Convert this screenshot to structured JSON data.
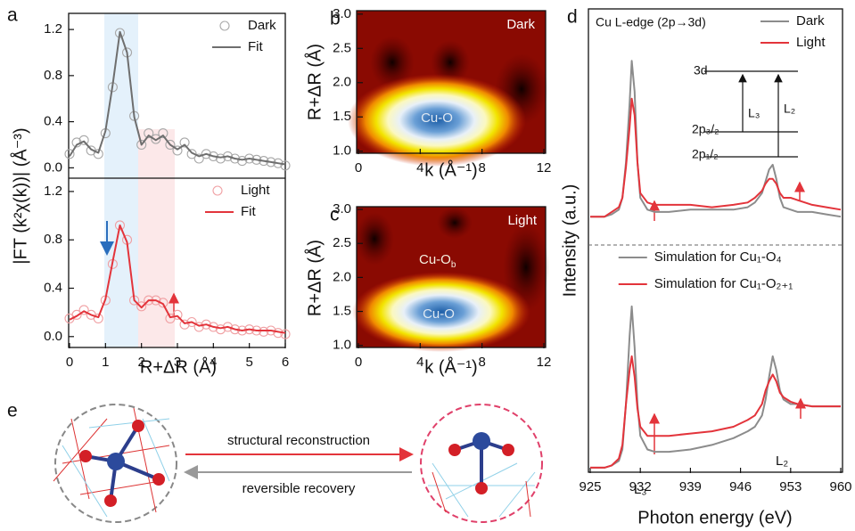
{
  "chart_data": [
    {
      "type": "line",
      "panel_label": "a",
      "ylabel": "|FT (k²χ(k))| (Å⁻³)",
      "x": [
        0,
        0.2,
        0.4,
        0.6,
        0.8,
        1.0,
        1.2,
        1.4,
        1.6,
        1.8,
        2.0,
        2.2,
        2.4,
        2.6,
        2.8,
        3.0,
        3.2,
        3.4,
        3.6,
        3.8,
        4.0,
        4.2,
        4.4,
        4.6,
        4.8,
        5.0,
        5.2,
        5.4,
        5.6,
        5.8,
        6.0
      ],
      "xlim": [
        0,
        6
      ],
      "ylim": [
        -0.09,
        1.34
      ],
      "yticks": [
        {
          "value": 0,
          "label": "0.0"
        },
        0.4,
        0.8,
        1.2
      ],
      "legend": "upper right",
      "series": [
        {
          "name": "Dark",
          "color": "#a8a8a8",
          "style": "markers",
          "values": [
            0.12,
            0.22,
            0.24,
            0.15,
            0.12,
            0.3,
            0.7,
            1.17,
            1.0,
            0.45,
            0.2,
            0.3,
            0.25,
            0.3,
            0.2,
            0.15,
            0.22,
            0.12,
            0.08,
            0.12,
            0.1,
            0.08,
            0.1,
            0.08,
            0.06,
            0.08,
            0.07,
            0.06,
            0.05,
            0.04,
            0.02
          ]
        },
        {
          "name": "Fit",
          "color": "#6e6e6e",
          "style": "line",
          "values": [
            0.1,
            0.2,
            0.23,
            0.16,
            0.13,
            0.32,
            0.72,
            1.18,
            1.0,
            0.44,
            0.2,
            0.28,
            0.24,
            0.28,
            0.2,
            0.16,
            0.2,
            0.13,
            0.1,
            0.12,
            0.1,
            0.09,
            0.1,
            0.08,
            0.07,
            0.08,
            0.07,
            0.06,
            0.05,
            0.04,
            0.03
          ]
        }
      ]
    },
    {
      "type": "line",
      "xlabel": "R+ΔR (Å)",
      "x": [
        0,
        0.2,
        0.4,
        0.6,
        0.8,
        1.0,
        1.2,
        1.4,
        1.6,
        1.8,
        2.0,
        2.2,
        2.4,
        2.6,
        2.8,
        3.0,
        3.2,
        3.4,
        3.6,
        3.8,
        4.0,
        4.2,
        4.4,
        4.6,
        4.8,
        5.0,
        5.2,
        5.4,
        5.6,
        5.8,
        6.0
      ],
      "xlim": [
        0,
        6
      ],
      "ylim": [
        -0.09,
        1.31
      ],
      "xticks": [
        0,
        1,
        2,
        3,
        4,
        5,
        6
      ],
      "yticks": [
        {
          "value": 0,
          "label": "0.0"
        },
        0.4,
        0.8,
        1.2
      ],
      "legend": "upper right",
      "series": [
        {
          "name": "Light",
          "color": "#f0a0a3",
          "style": "markers",
          "values": [
            0.15,
            0.18,
            0.22,
            0.18,
            0.15,
            0.3,
            0.6,
            0.92,
            0.8,
            0.3,
            0.25,
            0.3,
            0.3,
            0.28,
            0.15,
            0.18,
            0.1,
            0.12,
            0.08,
            0.1,
            0.08,
            0.06,
            0.08,
            0.06,
            0.05,
            0.06,
            0.05,
            0.04,
            0.05,
            0.03,
            0.02
          ]
        },
        {
          "name": "Fit",
          "color": "#e3343b",
          "style": "line",
          "values": [
            0.14,
            0.17,
            0.21,
            0.18,
            0.16,
            0.31,
            0.62,
            0.92,
            0.78,
            0.3,
            0.24,
            0.3,
            0.3,
            0.27,
            0.16,
            0.17,
            0.11,
            0.12,
            0.09,
            0.1,
            0.08,
            0.07,
            0.08,
            0.06,
            0.05,
            0.06,
            0.05,
            0.05,
            0.05,
            0.04,
            0.03
          ]
        }
      ]
    },
    {
      "type": "contour",
      "panel_label": "b",
      "xlabel": "k (Å⁻¹)",
      "ylabel": "R+ΔR (Å)",
      "xlim": [
        0,
        12
      ],
      "ylim": [
        0.97,
        3.05
      ],
      "xticks": [
        0,
        4,
        8,
        12
      ],
      "yticks": [
        {
          "value": 1,
          "label": "1.0"
        },
        1.5,
        {
          "value": 2,
          "label": "2.0"
        },
        2.5,
        {
          "value": 3,
          "label": "3.0"
        }
      ],
      "annotations": [
        {
          "text": "Dark"
        },
        {
          "text": "Cu-O"
        }
      ]
    },
    {
      "type": "contour",
      "panel_label": "c",
      "xlabel": "k (Å⁻¹)",
      "ylabel": "R+ΔR (Å)",
      "xlim": [
        0,
        12
      ],
      "ylim": [
        0.97,
        3.04
      ],
      "xticks": [
        0,
        4,
        8,
        12
      ],
      "yticks": [
        {
          "value": 1,
          "label": "1.0"
        },
        1.5,
        {
          "value": 2,
          "label": "2.0"
        },
        2.5,
        {
          "value": 3,
          "label": "3.0"
        }
      ],
      "annotations": [
        {
          "text": "Light"
        },
        {
          "text": "Cu-O"
        },
        {
          "text": "Cu-O",
          "sub": "b"
        }
      ]
    },
    {
      "type": "line",
      "panel_label": "d",
      "title": "Cu L-edge (2p→3d)",
      "ylabel": "Intensity (a.u.)",
      "x": [
        925,
        927,
        928,
        929,
        929.5,
        930,
        930.5,
        930.8,
        931.2,
        931.6,
        932,
        933,
        934,
        936,
        939,
        942,
        945,
        947,
        948,
        949,
        949.5,
        950,
        950.5,
        951,
        951.5,
        952,
        953,
        954,
        956,
        958,
        960
      ],
      "xlim": [
        925,
        960
      ],
      "ylim": [
        0,
        1
      ],
      "legend": "upper right",
      "annotations": [
        {
          "text": "3d"
        },
        {
          "text": "2p₃/₂"
        },
        {
          "text": "2p₁/₂"
        },
        {
          "text": "L₃"
        },
        {
          "text": "L₂"
        }
      ],
      "series": [
        {
          "name": "Dark",
          "color": "#8c8c8c",
          "style": "line",
          "values": [
            0.12,
            0.12,
            0.13,
            0.15,
            0.2,
            0.35,
            0.6,
            0.78,
            0.65,
            0.35,
            0.2,
            0.15,
            0.14,
            0.14,
            0.15,
            0.15,
            0.15,
            0.16,
            0.18,
            0.22,
            0.27,
            0.32,
            0.34,
            0.28,
            0.2,
            0.16,
            0.15,
            0.14,
            0.14,
            0.13,
            0.12
          ]
        },
        {
          "name": "Light",
          "color": "#e3343b",
          "style": "line",
          "values": [
            0.12,
            0.12,
            0.14,
            0.16,
            0.2,
            0.33,
            0.5,
            0.62,
            0.55,
            0.35,
            0.22,
            0.18,
            0.17,
            0.17,
            0.17,
            0.16,
            0.17,
            0.18,
            0.2,
            0.23,
            0.26,
            0.28,
            0.28,
            0.26,
            0.22,
            0.2,
            0.2,
            0.19,
            0.17,
            0.16,
            0.15
          ]
        }
      ]
    },
    {
      "type": "line",
      "xlabel": "Photon energy (eV)",
      "x": [
        925,
        927,
        928,
        929,
        929.5,
        930,
        930.5,
        930.8,
        931.2,
        931.6,
        932,
        933,
        934,
        936,
        939,
        942,
        945,
        947,
        948,
        949,
        949.5,
        950,
        950.5,
        951,
        951.5,
        952,
        953,
        954,
        956,
        958,
        960
      ],
      "xlim": [
        925,
        960
      ],
      "ylim": [
        0,
        1
      ],
      "xticks": [
        925,
        932,
        939,
        946,
        953,
        960
      ],
      "legend": "upper center",
      "annotations": [
        {
          "text": "L₃"
        },
        {
          "text": "L₂"
        }
      ],
      "series": [
        {
          "name": "Simulation for Cu₁-O₄",
          "color": "#8c8c8c",
          "style": "line",
          "values": [
            0.02,
            0.02,
            0.03,
            0.05,
            0.1,
            0.3,
            0.6,
            0.73,
            0.55,
            0.3,
            0.16,
            0.1,
            0.09,
            0.09,
            0.1,
            0.12,
            0.15,
            0.18,
            0.2,
            0.25,
            0.32,
            0.42,
            0.51,
            0.45,
            0.36,
            0.32,
            0.3,
            0.3,
            0.29,
            0.29,
            0.29
          ]
        },
        {
          "name": "Simulation for Cu₁-O₂₊₁",
          "color": "#e3343b",
          "style": "line",
          "values": [
            0.02,
            0.02,
            0.03,
            0.06,
            0.12,
            0.3,
            0.45,
            0.51,
            0.42,
            0.28,
            0.2,
            0.16,
            0.16,
            0.16,
            0.17,
            0.18,
            0.2,
            0.23,
            0.25,
            0.3,
            0.36,
            0.4,
            0.43,
            0.4,
            0.35,
            0.33,
            0.31,
            0.3,
            0.29,
            0.29,
            0.29
          ]
        }
      ]
    }
  ],
  "diagram": {
    "panel_label": "e",
    "arrows": [
      "structural reconstruction",
      "reversible recovery"
    ]
  }
}
